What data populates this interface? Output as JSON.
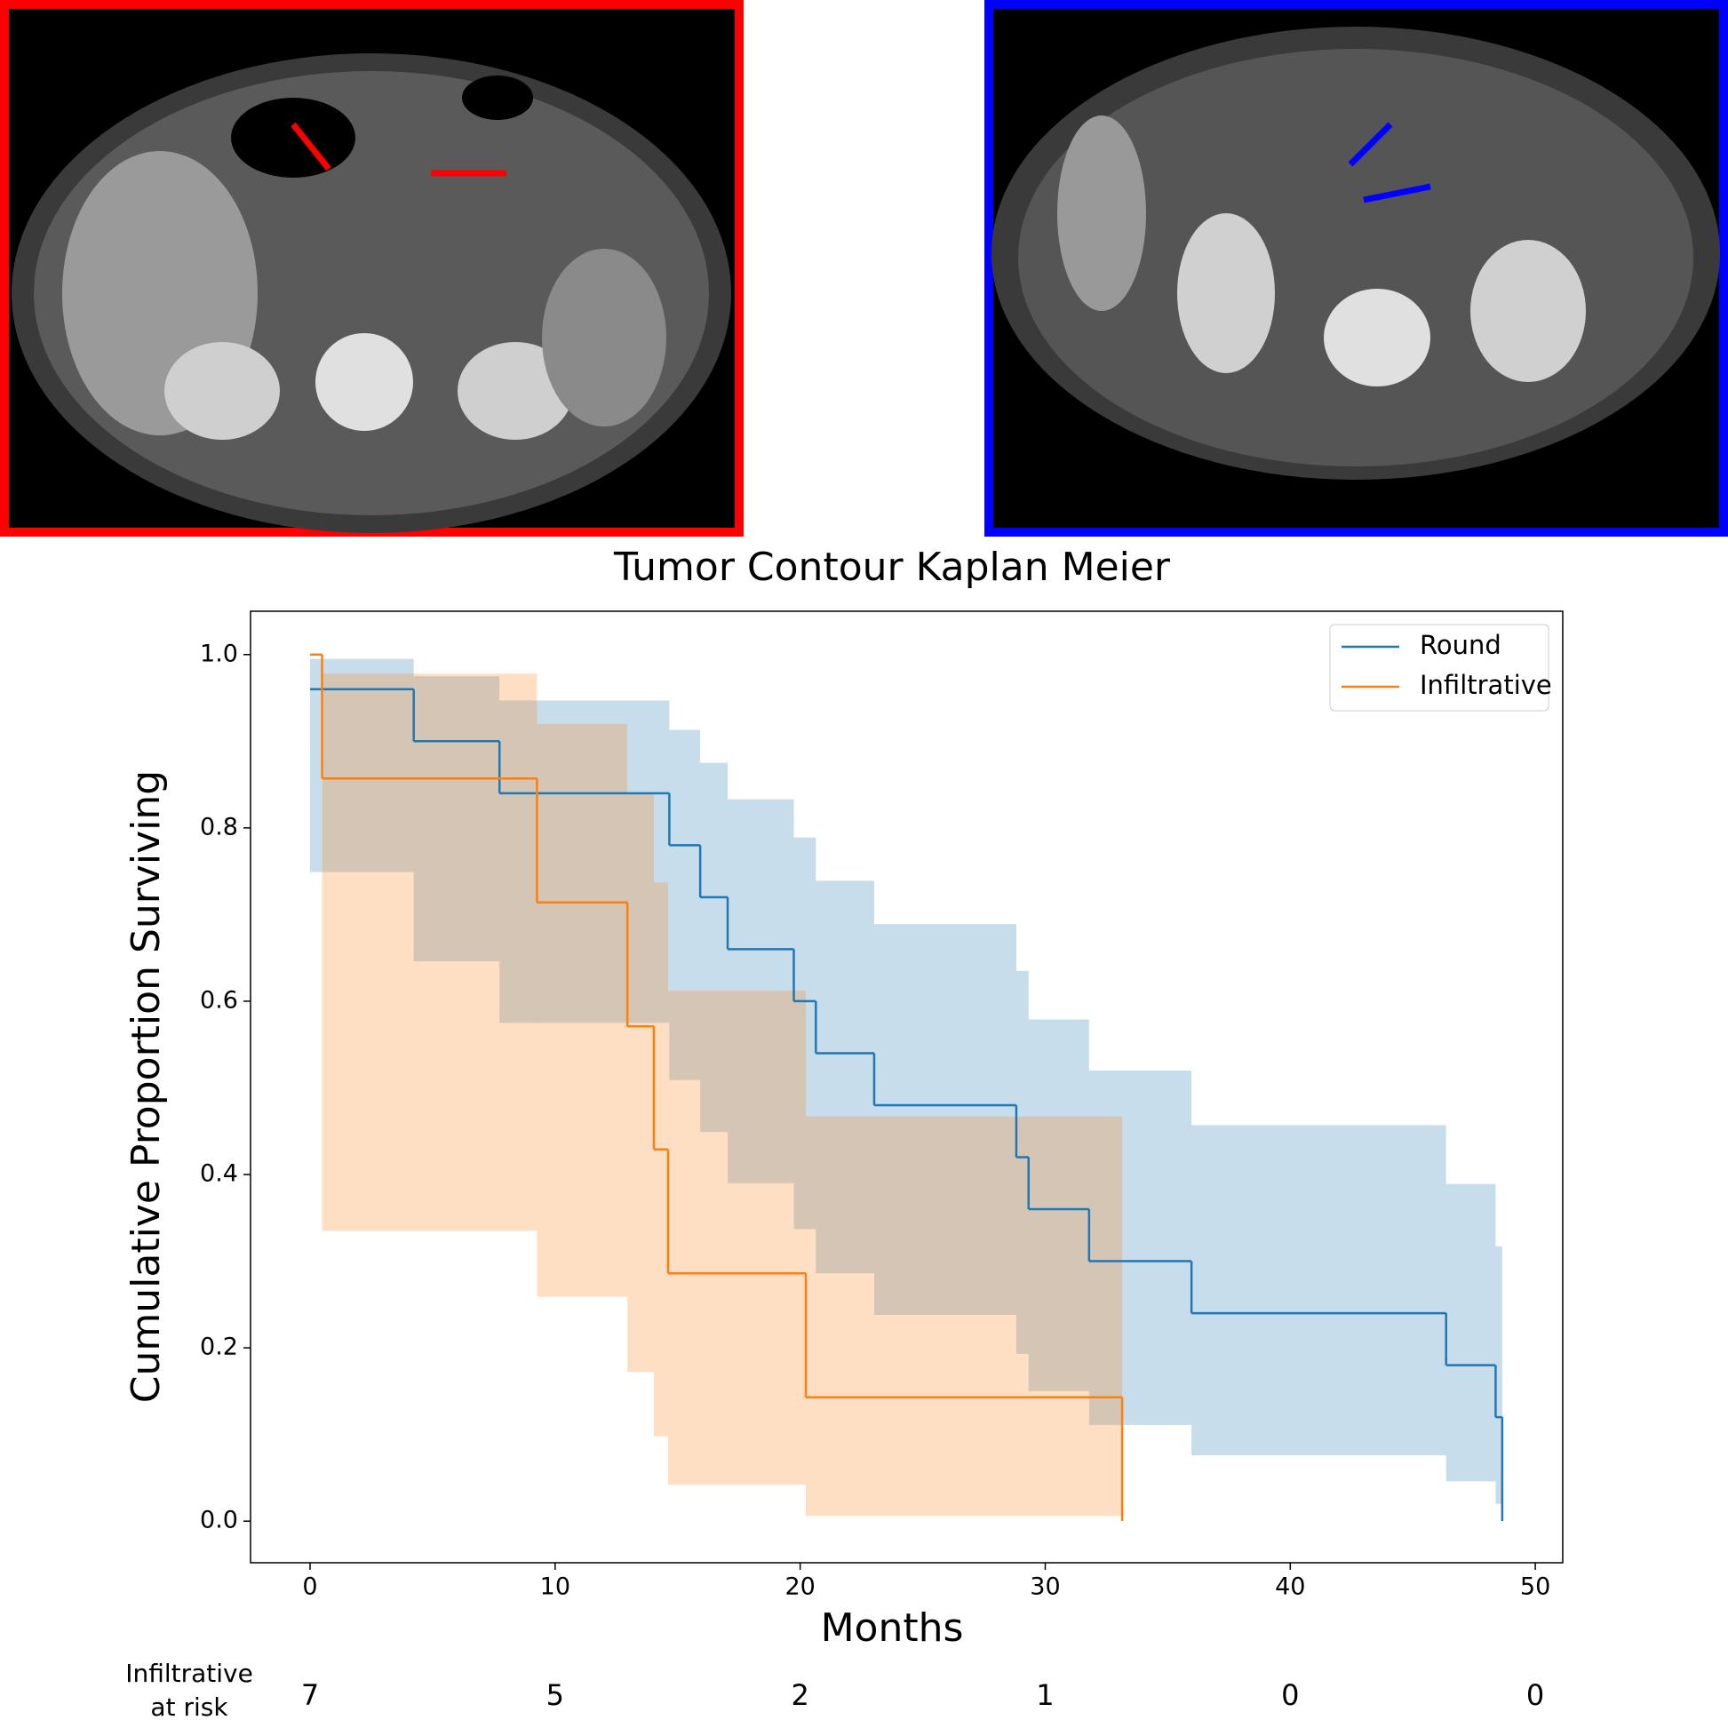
{
  "chart_data": {
    "type": "kaplan-meier",
    "title": "Tumor Contour Kaplan Meier",
    "x_label": "Months",
    "y_label": "Cumulative Proportion Surviving",
    "xlim": [
      -2.43,
      51.12
    ],
    "ylim": [
      -0.048,
      1.05
    ],
    "xticks": [
      0,
      10,
      20,
      30,
      40,
      50
    ],
    "yticks": [
      {
        "value": 0,
        "label": "0.0"
      },
      0.2,
      0.4,
      0.6,
      0.8,
      {
        "value": 1,
        "label": "1.0"
      }
    ],
    "grid": false,
    "legend": "upper right",
    "series": [
      {
        "name": "Round",
        "color": "#1f77b4",
        "x": [
          0,
          4.23,
          7.73,
          14.66,
          15.92,
          17.04,
          19.74,
          20.64,
          23.02,
          28.82,
          29.32,
          31.79,
          35.97,
          46.36,
          48.38,
          48.65
        ],
        "values": [
          0.96,
          0.9,
          0.84,
          0.78,
          0.72,
          0.66,
          0.6,
          0.54,
          0.48,
          0.42,
          0.36,
          0.3,
          0.24,
          0.18,
          0.12,
          0.0
        ],
        "ci_upper": [
          0.995,
          0.975,
          0.947,
          0.913,
          0.875,
          0.833,
          0.789,
          0.739,
          0.689,
          0.635,
          0.579,
          0.52,
          0.457,
          0.389,
          0.317,
          null
        ],
        "ci_lower": [
          0.749,
          0.646,
          0.575,
          0.509,
          0.449,
          0.39,
          0.337,
          0.286,
          0.238,
          0.193,
          0.15,
          0.111,
          0.076,
          0.046,
          0.02,
          null
        ]
      },
      {
        "name": "Infiltrative",
        "color": "#ff7f0e",
        "x": [
          0,
          0.49,
          9.26,
          12.95,
          14.03,
          14.61,
          20.23,
          33.14
        ],
        "values": [
          1.0,
          0.857,
          0.714,
          0.571,
          0.429,
          0.286,
          0.143,
          0.0
        ],
        "ci_upper": [
          1.0,
          0.978,
          0.92,
          0.84,
          0.737,
          0.612,
          0.467,
          null
        ],
        "ci_lower": [
          1.0,
          0.335,
          0.259,
          0.172,
          0.098,
          0.042,
          0.006,
          null
        ]
      }
    ],
    "at_risk": {
      "label": [
        "Infiltrative",
        "at risk"
      ],
      "counts": [
        7,
        5,
        2,
        1,
        0,
        0
      ]
    }
  }
}
